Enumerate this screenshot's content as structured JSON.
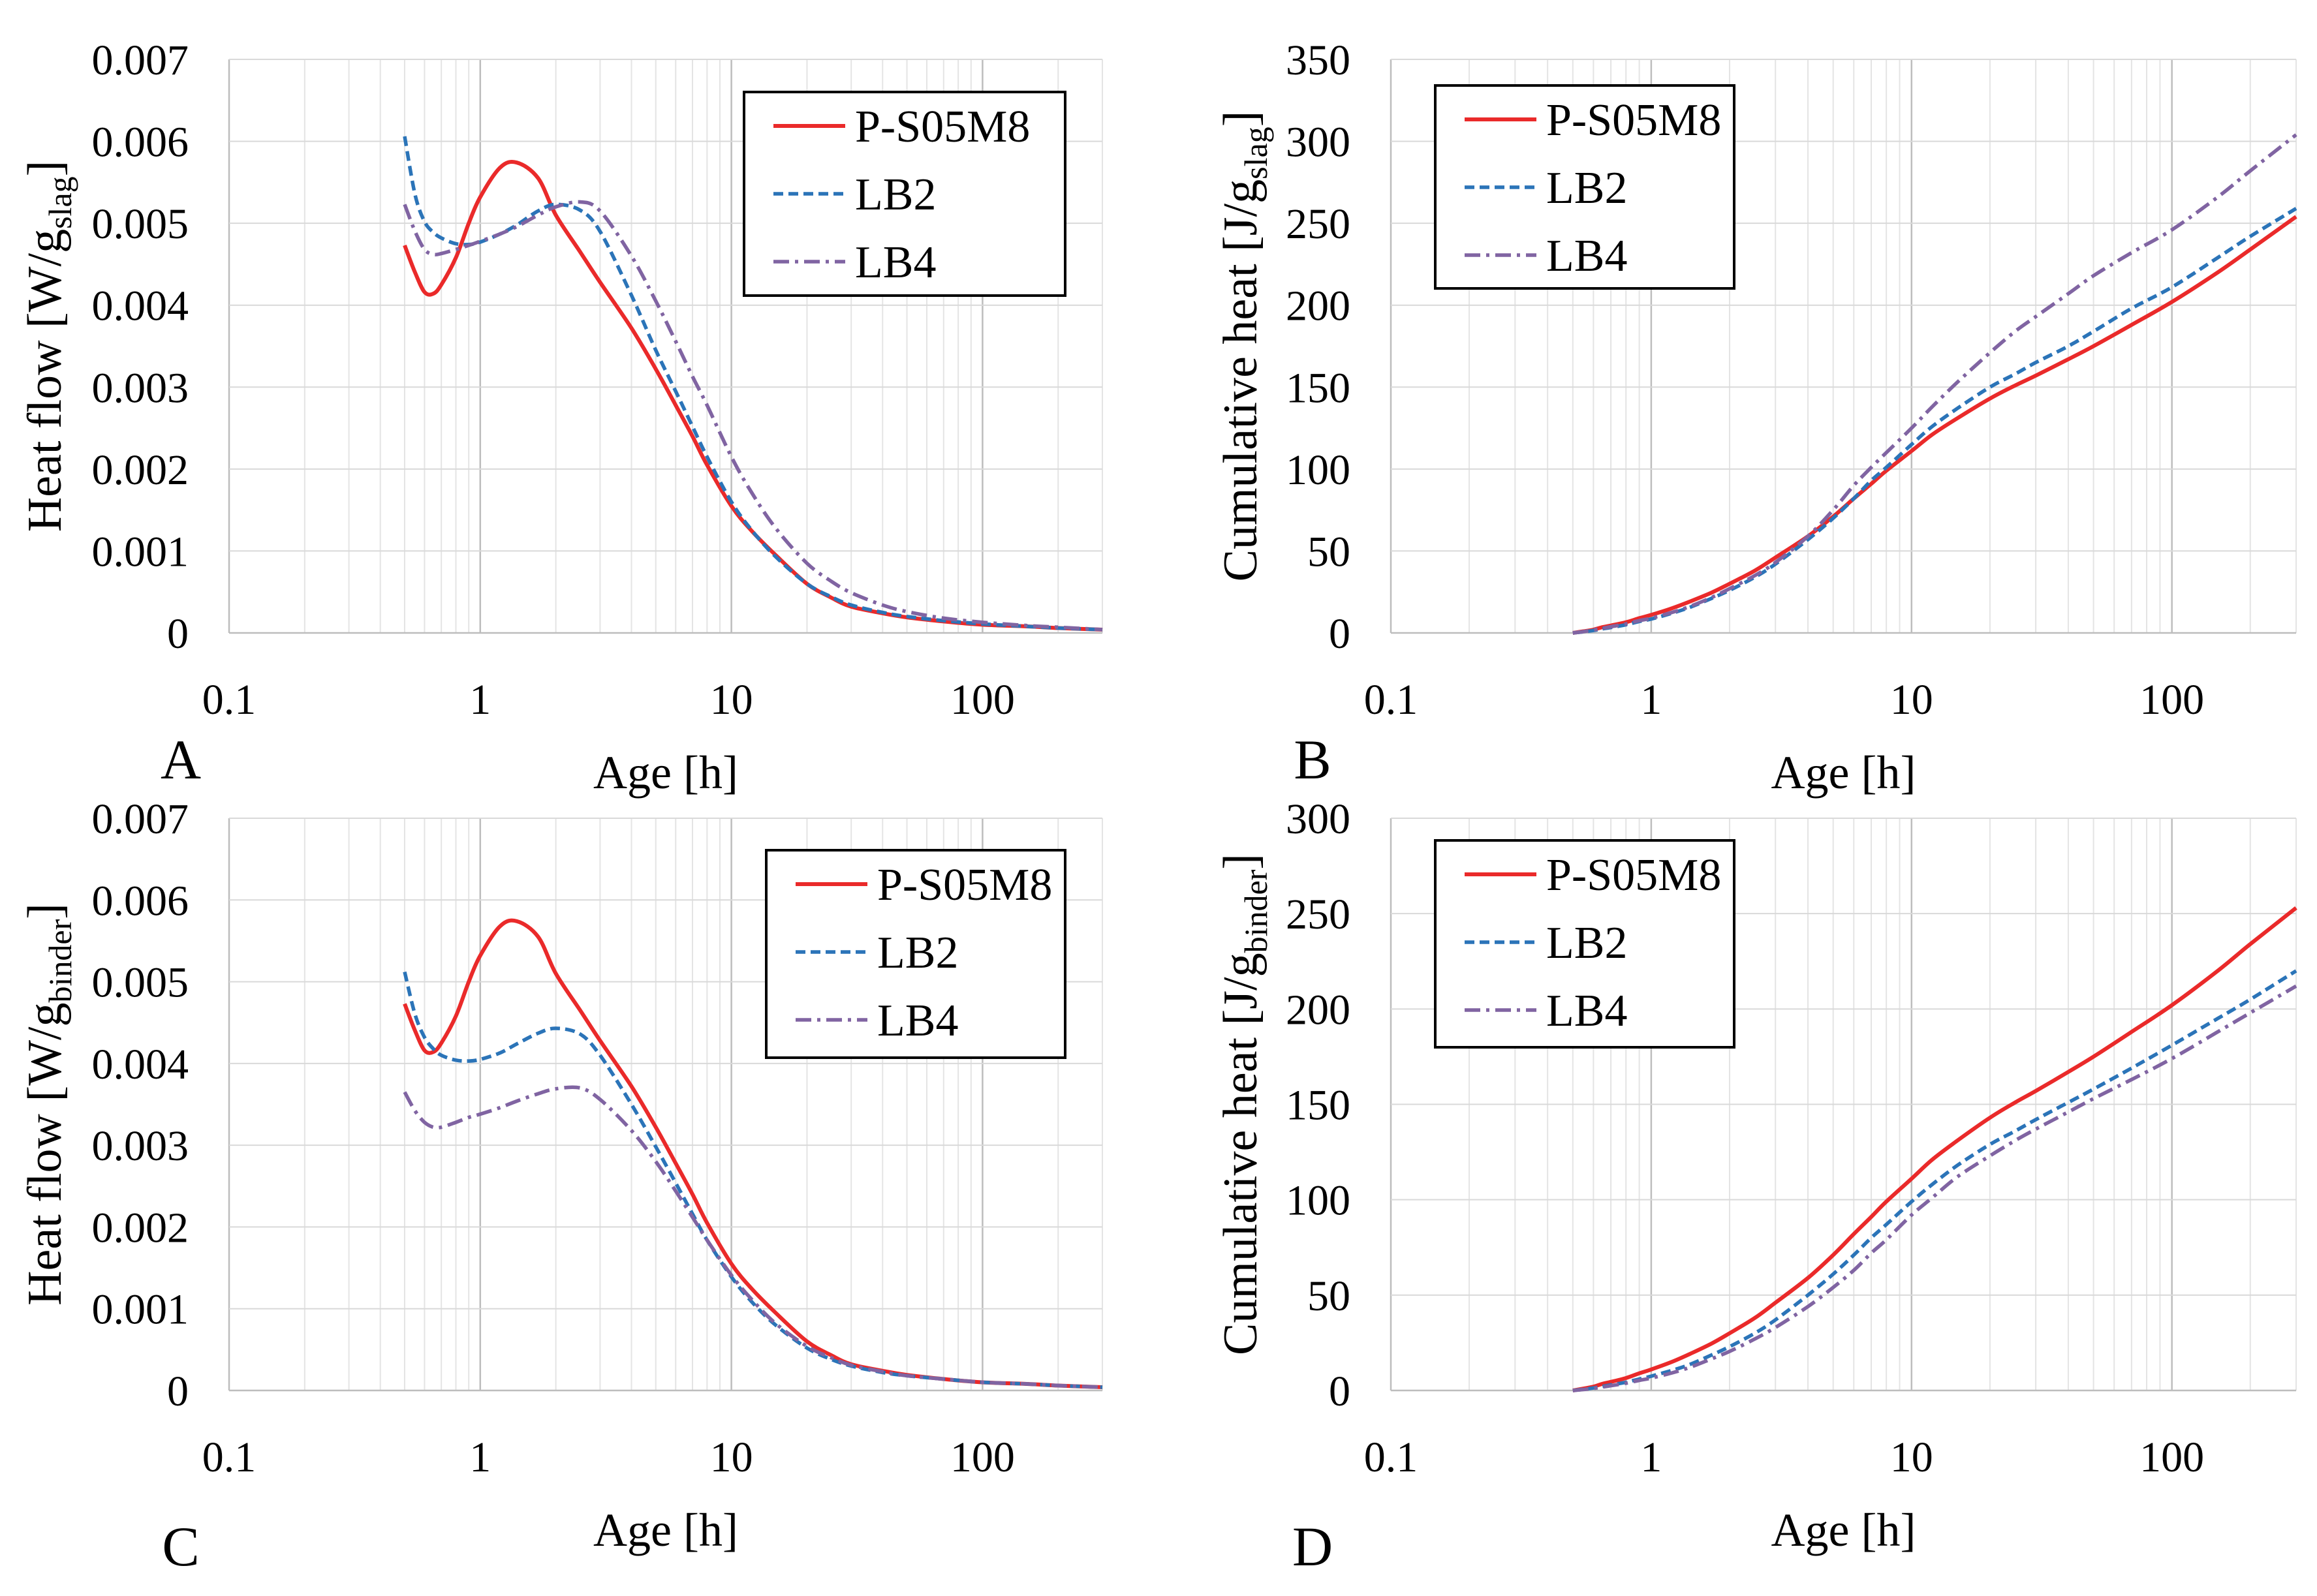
{
  "chart_data": [
    {
      "type": "line",
      "panel_label": "A",
      "xlabel": "Age [h]",
      "ylabel": {
        "pre": "Heat flow [W/g",
        "sub": "slag",
        "post": "]"
      },
      "xscale": "log",
      "xlim": [
        0.1,
        300
      ],
      "ylim": [
        0,
        0.007
      ],
      "xticks": [
        "0.1",
        "1",
        "10",
        "100"
      ],
      "yticks": [
        "0",
        "0.001",
        "0.002",
        "0.003",
        "0.004",
        "0.005",
        "0.006",
        "0.007"
      ],
      "grid": true,
      "legend": "top-right",
      "x": [
        0.5,
        0.55,
        0.6,
        0.65,
        0.7,
        0.8,
        0.9,
        1,
        1.2,
        1.4,
        1.7,
        2,
        2.5,
        3,
        4,
        5,
        6,
        7,
        8,
        10,
        12,
        15,
        20,
        25,
        30,
        40,
        50,
        70,
        100,
        150,
        200,
        300
      ],
      "series": [
        {
          "name": "P-S05M8",
          "color": "#ea2a2a",
          "style": "solid",
          "values": [
            0.00473,
            0.0044,
            0.00416,
            0.00414,
            0.00425,
            0.00458,
            0.005,
            0.00532,
            0.00568,
            0.00574,
            0.00555,
            0.0051,
            0.00465,
            0.00428,
            0.00372,
            0.00322,
            0.00278,
            0.0024,
            0.00205,
            0.00155,
            0.00125,
            0.00095,
            0.0006,
            0.00043,
            0.00032,
            0.00024,
            0.00019,
            0.00014,
            0.0001,
            8e-05,
            6e-05,
            4e-05
          ]
        },
        {
          "name": "LB2",
          "color": "#2b74b8",
          "style": "dashed",
          "values": [
            0.00606,
            0.00535,
            0.00502,
            0.00489,
            0.00482,
            0.00475,
            0.00474,
            0.00477,
            0.00487,
            0.00498,
            0.00515,
            0.00523,
            0.00516,
            0.0049,
            0.00412,
            0.00345,
            0.00295,
            0.00252,
            0.00215,
            0.0016,
            0.00126,
            0.00093,
            0.0006,
            0.00044,
            0.00034,
            0.00025,
            0.0002,
            0.00015,
            0.00011,
            8e-05,
            6e-05,
            4e-05
          ]
        },
        {
          "name": "LB4",
          "color": "#8064a2",
          "style": "dash-dot",
          "values": [
            0.00523,
            0.0049,
            0.00468,
            0.00462,
            0.00463,
            0.00468,
            0.00473,
            0.00478,
            0.00487,
            0.00496,
            0.0051,
            0.0052,
            0.00526,
            0.00515,
            0.0046,
            0.00405,
            0.00356,
            0.00313,
            0.00278,
            0.00215,
            0.00172,
            0.00128,
            0.00085,
            0.00063,
            0.00049,
            0.00034,
            0.00026,
            0.00018,
            0.00013,
            9e-05,
            7e-05,
            4e-05
          ]
        }
      ]
    },
    {
      "type": "line",
      "panel_label": "B",
      "xlabel": "Age [h]",
      "ylabel": {
        "pre": "Cumulative heat [J/g",
        "sub": "slag",
        "post": "]"
      },
      "xscale": "log",
      "xlim": [
        0.1,
        300
      ],
      "ylim": [
        0,
        350
      ],
      "xticks": [
        "0.1",
        "1",
        "10",
        "100"
      ],
      "yticks": [
        "0",
        "50",
        "100",
        "150",
        "200",
        "250",
        "300",
        "350"
      ],
      "grid": true,
      "legend": "top-left",
      "x": [
        0.5,
        0.55,
        0.6,
        0.65,
        0.7,
        0.8,
        0.9,
        1,
        1.2,
        1.4,
        1.7,
        2,
        2.5,
        3,
        4,
        5,
        6,
        7,
        8,
        10,
        12,
        15,
        20,
        25,
        30,
        40,
        50,
        70,
        100,
        150,
        200,
        300
      ],
      "series": [
        {
          "name": "P-S05M8",
          "color": "#ea2a2a",
          "style": "solid",
          "values": [
            0,
            1,
            2,
            3.5,
            4.5,
            6.5,
            9,
            11,
            15,
            19,
            24.5,
            30,
            38,
            46,
            59,
            71,
            82,
            91,
            99,
            111,
            121,
            131,
            143,
            151,
            157,
            167,
            175,
            188,
            202,
            220,
            234,
            254
          ]
        },
        {
          "name": "LB2",
          "color": "#2b74b8",
          "style": "dashed",
          "values": [
            0,
            0.7,
            1.5,
            2.5,
            3.3,
            5,
            7,
            8.5,
            12,
            15.5,
            21,
            26,
            34,
            42,
            57,
            70,
            82,
            93,
            101,
            115,
            126,
            137,
            150,
            158,
            165,
            175,
            184,
            198,
            211,
            229,
            242,
            259
          ]
        },
        {
          "name": "LB4",
          "color": "#8064a2",
          "style": "dash-dot",
          "values": [
            0,
            0.8,
            1.8,
            2.8,
            3.8,
            5.5,
            7.5,
            9,
            12.5,
            16,
            21.5,
            27,
            35,
            43,
            59,
            75,
            90,
            101,
            110,
            125,
            138,
            153,
            171,
            184,
            193,
            207,
            218,
            232,
            246,
            266,
            282,
            304
          ]
        }
      ]
    },
    {
      "type": "line",
      "panel_label": "C",
      "xlabel": "Age [h]",
      "ylabel": {
        "pre": "Heat flow [W/g",
        "sub": "binder",
        "post": "]"
      },
      "xscale": "log",
      "xlim": [
        0.1,
        300
      ],
      "ylim": [
        0,
        0.007
      ],
      "xticks": [
        "0.1",
        "1",
        "10",
        "100"
      ],
      "yticks": [
        "0",
        "0.001",
        "0.002",
        "0.003",
        "0.004",
        "0.005",
        "0.006",
        "0.007"
      ],
      "grid": true,
      "legend": "top-right",
      "x": [
        0.5,
        0.55,
        0.6,
        0.65,
        0.7,
        0.8,
        0.9,
        1,
        1.2,
        1.4,
        1.7,
        2,
        2.5,
        3,
        4,
        5,
        6,
        7,
        8,
        10,
        12,
        15,
        20,
        25,
        30,
        40,
        50,
        70,
        100,
        150,
        200,
        300
      ],
      "series": [
        {
          "name": "P-S05M8",
          "color": "#ea2a2a",
          "style": "solid",
          "values": [
            0.00473,
            0.0044,
            0.00416,
            0.00414,
            0.00425,
            0.00458,
            0.005,
            0.00532,
            0.00568,
            0.00574,
            0.00555,
            0.0051,
            0.00465,
            0.00428,
            0.00372,
            0.00322,
            0.00278,
            0.0024,
            0.00205,
            0.00155,
            0.00125,
            0.00095,
            0.0006,
            0.00043,
            0.00032,
            0.00024,
            0.00019,
            0.00014,
            0.0001,
            8e-05,
            6e-05,
            4e-05
          ]
        },
        {
          "name": "LB2",
          "color": "#2b74b8",
          "style": "dashed",
          "values": [
            0.00512,
            0.0046,
            0.00432,
            0.00418,
            0.0041,
            0.00404,
            0.00403,
            0.00405,
            0.00413,
            0.00424,
            0.00437,
            0.00443,
            0.00436,
            0.0041,
            0.0035,
            0.00298,
            0.00254,
            0.00216,
            0.00184,
            0.00139,
            0.00109,
            0.0008,
            0.00052,
            0.00038,
            0.0003,
            0.00022,
            0.00018,
            0.00014,
            0.0001,
            8e-05,
            6e-05,
            4e-05
          ]
        },
        {
          "name": "LB4",
          "color": "#8064a2",
          "style": "dash-dot",
          "values": [
            0.00365,
            0.00342,
            0.00328,
            0.00322,
            0.00322,
            0.00328,
            0.00334,
            0.00338,
            0.00346,
            0.00354,
            0.00363,
            0.00369,
            0.0037,
            0.00356,
            0.00318,
            0.0028,
            0.00244,
            0.00212,
            0.00184,
            0.00141,
            0.00112,
            0.00082,
            0.00054,
            0.0004,
            0.00031,
            0.00023,
            0.00018,
            0.00014,
            0.0001,
            8e-05,
            6e-05,
            4e-05
          ]
        }
      ]
    },
    {
      "type": "line",
      "panel_label": "D",
      "xlabel": "Age [h]",
      "ylabel": {
        "pre": "Cumulative heat [J/g",
        "sub": "binder",
        "post": "]"
      },
      "xscale": "log",
      "xlim": [
        0.1,
        300
      ],
      "ylim": [
        0,
        300
      ],
      "xticks": [
        "0.1",
        "1",
        "10",
        "100"
      ],
      "yticks": [
        "0",
        "50",
        "100",
        "150",
        "200",
        "250",
        "300"
      ],
      "grid": true,
      "legend": "top-left",
      "x": [
        0.5,
        0.55,
        0.6,
        0.65,
        0.7,
        0.8,
        0.9,
        1,
        1.2,
        1.4,
        1.7,
        2,
        2.5,
        3,
        4,
        5,
        6,
        7,
        8,
        10,
        12,
        15,
        20,
        25,
        30,
        40,
        50,
        70,
        100,
        150,
        200,
        300
      ],
      "series": [
        {
          "name": "P-S05M8",
          "color": "#ea2a2a",
          "style": "solid",
          "values": [
            0,
            1,
            2,
            3.5,
            4.5,
            6.5,
            9,
            11,
            15,
            19,
            24.5,
            30,
            38,
            46,
            59,
            71,
            82,
            91,
            99,
            111,
            121,
            131,
            143,
            151,
            157,
            167,
            175,
            188,
            202,
            220,
            234,
            253
          ]
        },
        {
          "name": "LB2",
          "color": "#2b74b8",
          "style": "dashed",
          "values": [
            0,
            0.6,
            1.3,
            2.1,
            2.9,
            4.3,
            6,
            7.5,
            10.5,
            13.5,
            18.5,
            23,
            30,
            37,
            50,
            61,
            71,
            80,
            87,
            99,
            108,
            118,
            129,
            136,
            142,
            151,
            158,
            169,
            181,
            195,
            205,
            220
          ]
        },
        {
          "name": "LB4",
          "color": "#8064a2",
          "style": "dash-dot",
          "values": [
            0,
            0.5,
            1.1,
            1.8,
            2.5,
            3.8,
            5.3,
            6.5,
            9.2,
            12,
            16.5,
            20.5,
            27,
            33,
            44,
            54,
            63,
            72,
            79,
            92,
            101,
            112,
            123,
            131,
            137,
            146,
            153,
            163,
            174,
            188,
            198,
            212
          ]
        }
      ]
    }
  ]
}
